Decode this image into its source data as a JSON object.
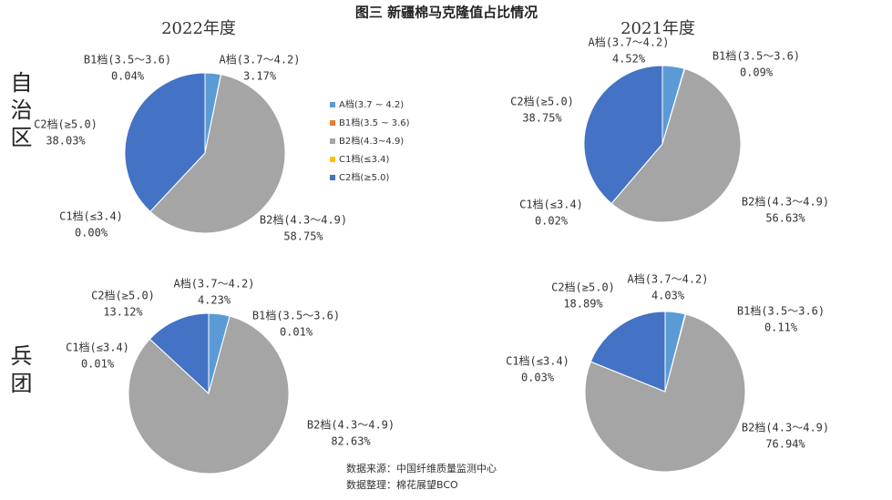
{
  "title": "图三 新疆棉马克隆值占比情况",
  "row_labels": [
    "自治区",
    "兵团"
  ],
  "legend": [
    {
      "label": "A档(3.7 ~ 4.2)",
      "color": "#5b9bd5"
    },
    {
      "label": "B1档(3.5 ~ 3.6)",
      "color": "#ed7d31"
    },
    {
      "label": "B2档(4.3~4.9)",
      "color": "#a5a5a5"
    },
    {
      "label": "C1档(≤3.4)",
      "color": "#ffc000"
    },
    {
      "label": "C2档(≥5.0)",
      "color": "#4472c4"
    }
  ],
  "source": [
    "数据来源：中国纤维质量监测中心",
    "数据整理：棉花展望BCO"
  ],
  "chart_data": [
    {
      "type": "pie",
      "title": "2022年度",
      "categories": [
        "A档(3.7～4.2)",
        "B1档(3.5～3.6)",
        "B2档(4.3～4.9)",
        "C1档(≤3.4)",
        "C2档(≥5.0)"
      ],
      "values": [
        3.17,
        0.04,
        58.75,
        0.0,
        38.03
      ],
      "value_labels": [
        "3.17%",
        "0.04%",
        "58.75%",
        "0.00%",
        "38.03%"
      ],
      "colors": [
        "#5b9bd5",
        "#ed7d31",
        "#a5a5a5",
        "#ffc000",
        "#4472c4"
      ]
    },
    {
      "type": "pie",
      "title": "2021年度",
      "categories": [
        "A档(3.7～4.2)",
        "B1档(3.5～3.6)",
        "B2档(4.3～4.9)",
        "C1档(≤3.4)",
        "C2档(≥5.0)"
      ],
      "values": [
        4.52,
        0.09,
        56.63,
        0.02,
        38.75
      ],
      "value_labels": [
        "4.52%",
        "0.09%",
        "56.63%",
        "0.02%",
        "38.75%"
      ],
      "colors": [
        "#5b9bd5",
        "#ed7d31",
        "#a5a5a5",
        "#ffc000",
        "#4472c4"
      ]
    },
    {
      "type": "pie",
      "categories": [
        "A档(3.7～4.2)",
        "B1档(3.5～3.6)",
        "B2档(4.3～4.9)",
        "C1档(≤3.4)",
        "C2档(≥5.0)"
      ],
      "values": [
        4.23,
        0.01,
        82.63,
        0.01,
        13.12
      ],
      "value_labels": [
        "4.23%",
        "0.01%",
        "82.63%",
        "0.01%",
        "13.12%"
      ],
      "colors": [
        "#5b9bd5",
        "#ed7d31",
        "#a5a5a5",
        "#ffc000",
        "#4472c4"
      ]
    },
    {
      "type": "pie",
      "categories": [
        "A档(3.7～4.2)",
        "B1档(3.5～3.6)",
        "B2档(4.3～4.9)",
        "C1档(≤3.4)",
        "C2档(≥5.0)"
      ],
      "values": [
        4.03,
        0.11,
        76.94,
        0.03,
        18.89
      ],
      "value_labels": [
        "4.03%",
        "0.11%",
        "76.94%",
        "0.03%",
        "18.89%"
      ],
      "colors": [
        "#5b9bd5",
        "#ed7d31",
        "#a5a5a5",
        "#ffc000",
        "#4472c4"
      ]
    }
  ]
}
